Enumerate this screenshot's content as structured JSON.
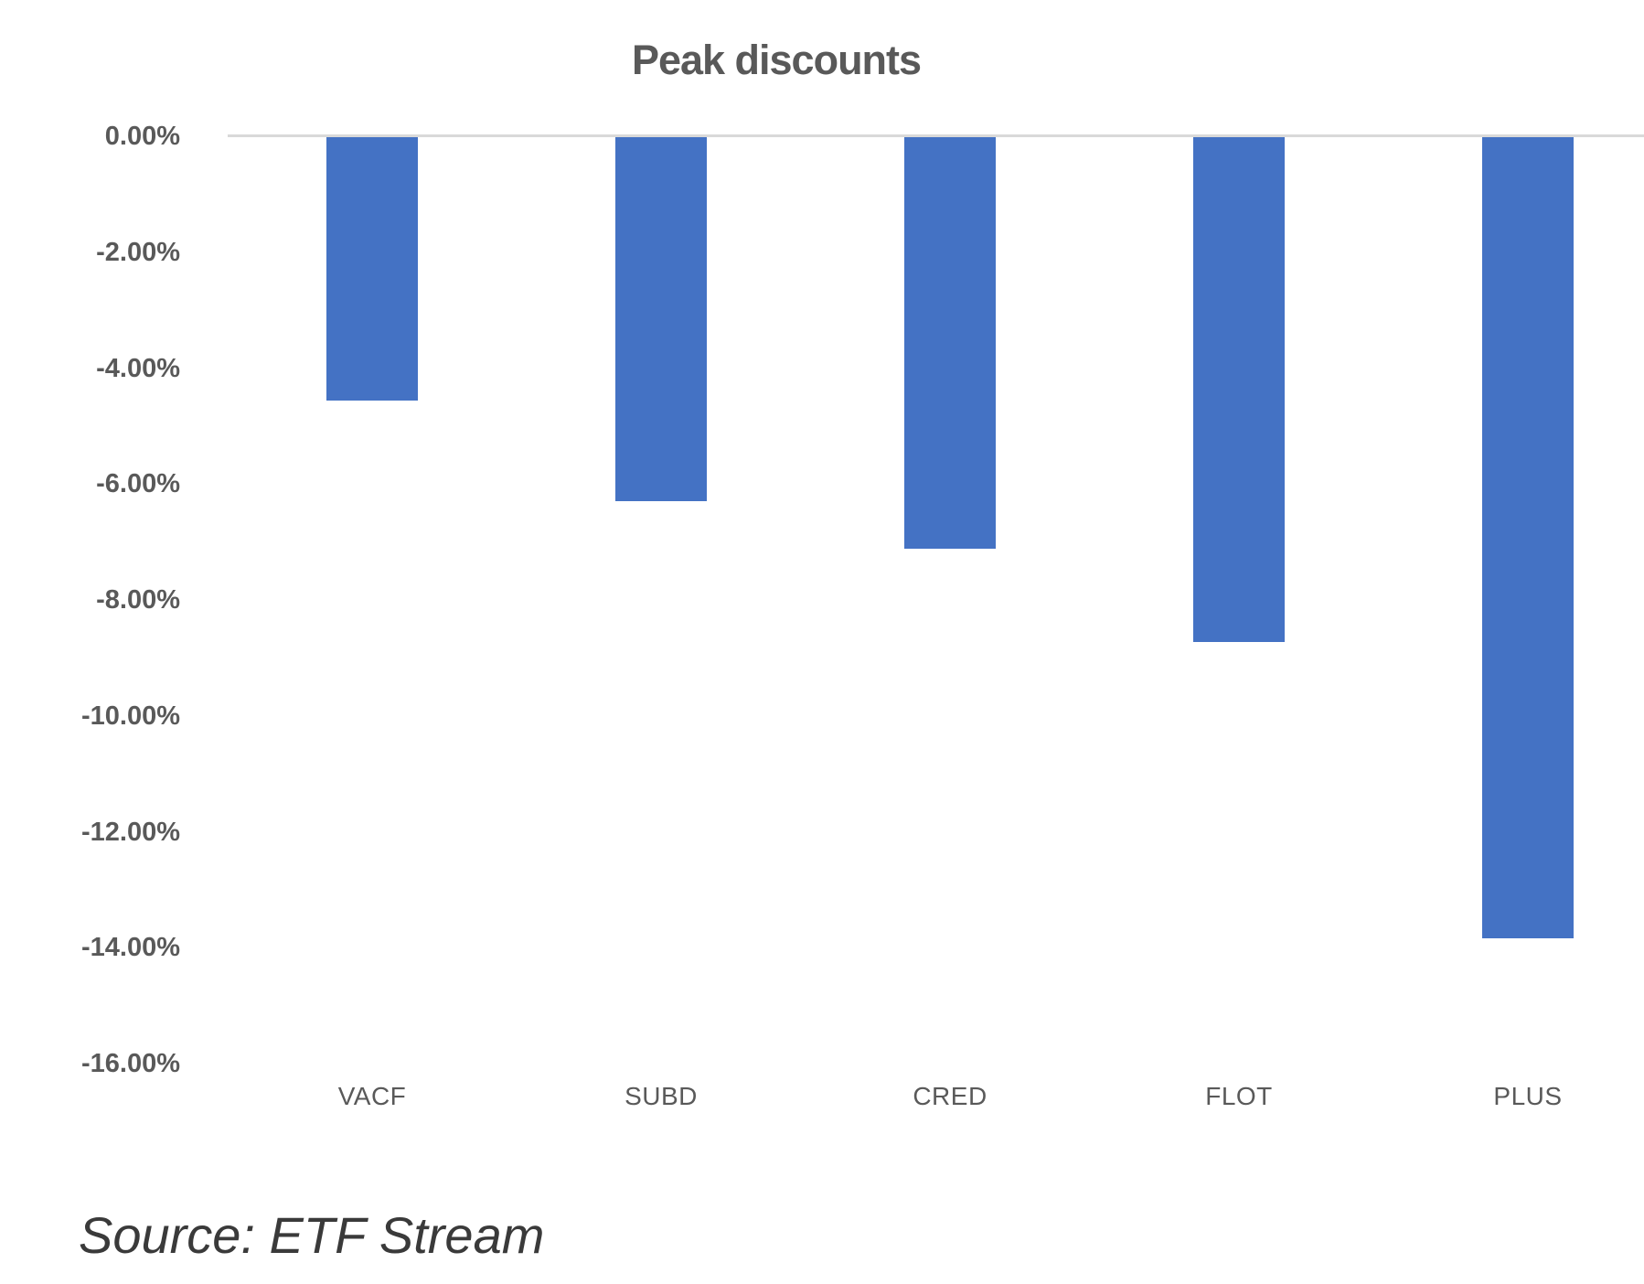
{
  "source": {
    "text": "Source: ETF Stream"
  },
  "colors": {
    "bar": "#4472C4",
    "axis_line": "#D9D9D9",
    "axis_text": "#595959",
    "title_text": "#595959",
    "source_text": "#3A3A3A",
    "background": "#FFFFFF"
  },
  "chart_data": {
    "type": "bar",
    "title": "Peak discounts",
    "categories": [
      "VACF",
      "SUBD",
      "CRED",
      "FLOT",
      "PLUS"
    ],
    "values": [
      -4.55,
      -6.28,
      -7.1,
      -8.71,
      -13.82
    ],
    "series_unit": "percent",
    "xlabel": "",
    "ylabel": "",
    "ylim": [
      -16,
      0
    ],
    "ytick_step": 2,
    "yticks": [
      "0.00%",
      "-2.00%",
      "-4.00%",
      "-6.00%",
      "-8.00%",
      "-10.00%",
      "-12.00%",
      "-14.00%",
      "-16.00%"
    ],
    "grid": false,
    "legend_position": "none",
    "bar_color": "#4472C4"
  }
}
